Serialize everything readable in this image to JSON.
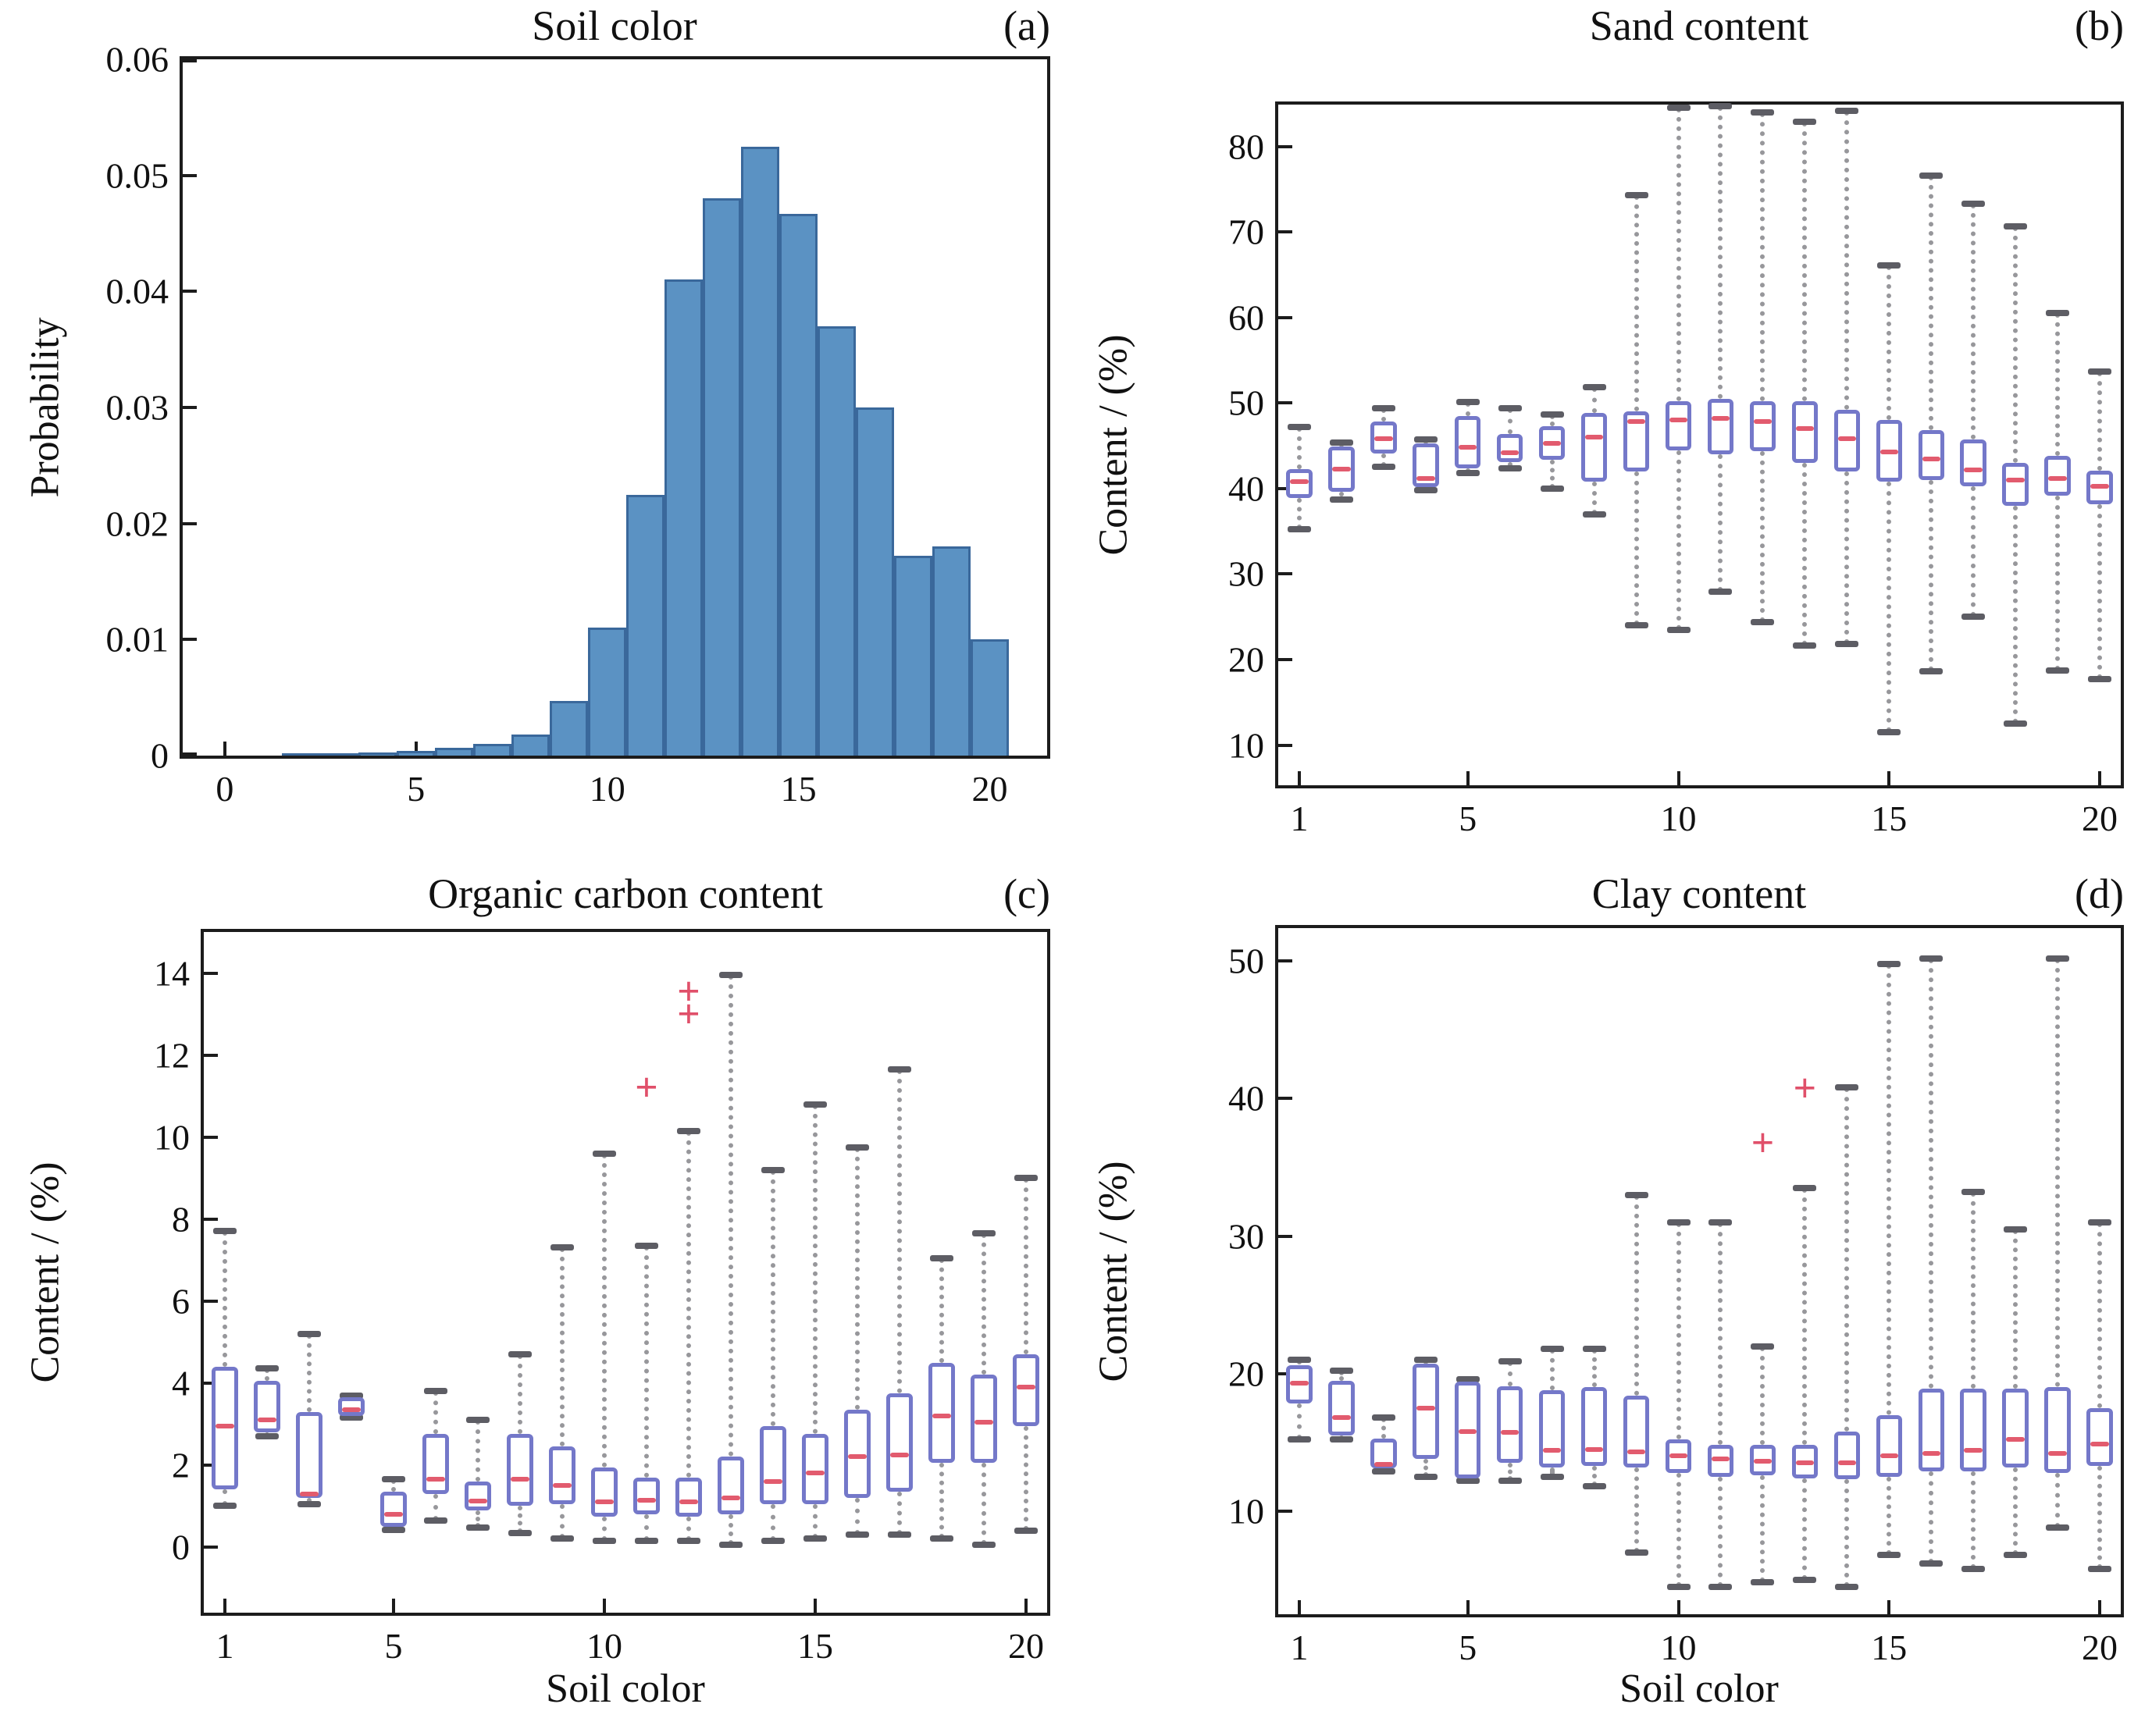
{
  "colors": {
    "hist_fill": "#5b92c3",
    "hist_edge": "#3a689b",
    "box_edge": "#7478c9",
    "median": "#e25b6e",
    "whisker": "#97979b",
    "cap": "#5d5d64",
    "outlier": "#e0506a",
    "axis": "#1c1c1c",
    "text": "#111111"
  },
  "box_values_order": "lo, q1, median, q3, hi",
  "chart_data": [
    {
      "id": "a",
      "type": "bar",
      "subtype": "histogram",
      "title": "Soil color",
      "tag": "(a)",
      "ylabel": "Probability",
      "xlabel": "",
      "xlim": [
        -1.1,
        21.5
      ],
      "ylim": [
        0,
        0.06
      ],
      "xticks": [
        0,
        5,
        10,
        15,
        20
      ],
      "yticks": [
        0,
        0.01,
        0.02,
        0.03,
        0.04,
        0.05,
        0.06
      ],
      "ytick_labels": [
        "0",
        "0.01",
        "0.02",
        "0.03",
        "0.04",
        "0.05",
        "0.06"
      ],
      "bin_start": 1.5,
      "bin_width": 1.0,
      "values": [
        0.0002,
        0.0002,
        0.0003,
        0.0004,
        0.0007,
        0.001,
        0.0018,
        0.0047,
        0.011,
        0.0225,
        0.041,
        0.048,
        0.0525,
        0.0467,
        0.037,
        0.03,
        0.0172,
        0.018,
        0.01
      ]
    },
    {
      "id": "b",
      "type": "box",
      "title": "Sand content",
      "tag": "(b)",
      "ylabel": "Content / (%)",
      "xlabel": "",
      "categories": [
        1,
        2,
        3,
        4,
        5,
        6,
        7,
        8,
        9,
        10,
        11,
        12,
        13,
        14,
        15,
        16,
        17,
        18,
        19,
        20
      ],
      "xticks": [
        1,
        5,
        10,
        15,
        20
      ],
      "yticks": [
        10,
        20,
        30,
        40,
        50,
        60,
        70,
        80
      ],
      "ylim": [
        5.3,
        84.9
      ],
      "boxes": [
        {
          "w": [
            35.2,
            38.9,
            40.8,
            42.3,
            47.2
          ],
          "out": []
        },
        {
          "w": [
            38.7,
            39.6,
            42.3,
            44.9,
            45.4
          ],
          "out": []
        },
        {
          "w": [
            42.5,
            44.1,
            45.8,
            47.8,
            49.4
          ],
          "out": []
        },
        {
          "w": [
            39.8,
            40.2,
            41.2,
            45.3,
            45.7
          ],
          "out": []
        },
        {
          "w": [
            41.8,
            42.4,
            44.8,
            48.5,
            50.1
          ],
          "out": []
        },
        {
          "w": [
            42.4,
            43.1,
            44.2,
            46.4,
            49.4
          ],
          "out": []
        },
        {
          "w": [
            40.0,
            43.4,
            45.3,
            47.3,
            48.7
          ],
          "out": []
        },
        {
          "w": [
            37.0,
            40.8,
            46.0,
            48.8,
            51.9
          ],
          "out": []
        },
        {
          "w": [
            24.0,
            42.0,
            47.8,
            49.0,
            74.3
          ],
          "out": []
        },
        {
          "w": [
            23.5,
            44.5,
            48.0,
            50.2,
            84.5
          ],
          "out": []
        },
        {
          "w": [
            27.9,
            44.0,
            48.2,
            50.5,
            84.7
          ],
          "out": []
        },
        {
          "w": [
            24.4,
            44.4,
            47.8,
            50.2,
            84.0
          ],
          "out": []
        },
        {
          "w": [
            21.6,
            43.0,
            47.0,
            50.2,
            82.9
          ],
          "out": []
        },
        {
          "w": [
            21.8,
            42.0,
            45.8,
            49.2,
            84.2
          ],
          "out": []
        },
        {
          "w": [
            11.5,
            40.8,
            44.3,
            48.0,
            66.1
          ],
          "out": []
        },
        {
          "w": [
            18.6,
            41.0,
            43.5,
            46.8,
            76.6
          ],
          "out": []
        },
        {
          "w": [
            25.0,
            40.3,
            42.2,
            45.7,
            73.3
          ],
          "out": []
        },
        {
          "w": [
            12.5,
            38.0,
            41.0,
            43.0,
            70.7
          ],
          "out": []
        },
        {
          "w": [
            18.7,
            39.2,
            41.2,
            43.8,
            60.5
          ],
          "out": []
        },
        {
          "w": [
            17.7,
            38.2,
            40.3,
            42.1,
            53.7
          ],
          "out": []
        }
      ]
    },
    {
      "id": "c",
      "type": "box",
      "title": "Organic carbon content",
      "tag": "(c)",
      "ylabel": "Content / (%)",
      "xlabel": "Soil color",
      "categories": [
        1,
        2,
        3,
        4,
        5,
        6,
        7,
        8,
        9,
        10,
        11,
        12,
        13,
        14,
        15,
        16,
        17,
        18,
        19,
        20
      ],
      "xticks": [
        1,
        5,
        10,
        15,
        20
      ],
      "yticks": [
        0,
        2,
        4,
        6,
        8,
        10,
        12,
        14
      ],
      "ylim": [
        -1.6,
        15.0
      ],
      "boxes": [
        {
          "w": [
            1.0,
            1.4,
            2.95,
            4.4,
            7.7
          ],
          "out": []
        },
        {
          "w": [
            2.7,
            2.8,
            3.1,
            4.05,
            4.35
          ],
          "out": []
        },
        {
          "w": [
            1.05,
            1.2,
            1.3,
            3.3,
            5.2
          ],
          "out": []
        },
        {
          "w": [
            3.15,
            3.2,
            3.35,
            3.65,
            3.7
          ],
          "out": []
        },
        {
          "w": [
            0.42,
            0.5,
            0.8,
            1.35,
            1.65
          ],
          "out": []
        },
        {
          "w": [
            0.65,
            1.3,
            1.65,
            2.75,
            3.8
          ],
          "out": []
        },
        {
          "w": [
            0.48,
            0.9,
            1.12,
            1.6,
            3.1
          ],
          "out": []
        },
        {
          "w": [
            0.35,
            1.0,
            1.65,
            2.75,
            4.7
          ],
          "out": []
        },
        {
          "w": [
            0.2,
            1.05,
            1.5,
            2.45,
            7.3
          ],
          "out": []
        },
        {
          "w": [
            0.15,
            0.75,
            1.1,
            1.95,
            9.6
          ],
          "out": []
        },
        {
          "w": [
            0.15,
            0.8,
            1.15,
            1.7,
            7.35
          ],
          "out": [
            11.15
          ]
        },
        {
          "w": [
            0.15,
            0.75,
            1.1,
            1.7,
            10.15
          ],
          "out": [
            12.95,
            13.5
          ]
        },
        {
          "w": [
            0.05,
            0.8,
            1.2,
            2.2,
            13.95
          ],
          "out": []
        },
        {
          "w": [
            0.15,
            1.05,
            1.6,
            2.95,
            9.2
          ],
          "out": []
        },
        {
          "w": [
            0.2,
            1.05,
            1.8,
            2.75,
            10.8
          ],
          "out": []
        },
        {
          "w": [
            0.3,
            1.2,
            2.2,
            3.35,
            9.75
          ],
          "out": []
        },
        {
          "w": [
            0.3,
            1.35,
            2.25,
            3.75,
            11.65
          ],
          "out": []
        },
        {
          "w": [
            0.2,
            2.05,
            3.2,
            4.5,
            7.05
          ],
          "out": []
        },
        {
          "w": [
            0.05,
            2.05,
            3.05,
            4.2,
            7.65
          ],
          "out": []
        },
        {
          "w": [
            0.4,
            2.95,
            3.9,
            4.7,
            9.0
          ],
          "out": []
        }
      ]
    },
    {
      "id": "d",
      "type": "box",
      "title": "Clay content",
      "tag": "(d)",
      "ylabel": "Content / (%)",
      "xlabel": "Soil color",
      "categories": [
        1,
        2,
        3,
        4,
        5,
        6,
        7,
        8,
        9,
        10,
        11,
        12,
        13,
        14,
        15,
        16,
        17,
        18,
        19,
        20
      ],
      "xticks": [
        1,
        5,
        10,
        15,
        20
      ],
      "yticks": [
        10,
        20,
        30,
        40,
        50
      ],
      "ylim": [
        2.5,
        52.4
      ],
      "boxes": [
        {
          "w": [
            15.2,
            17.8,
            19.3,
            20.6,
            21.0
          ],
          "out": []
        },
        {
          "w": [
            15.2,
            15.5,
            16.8,
            19.5,
            20.2
          ],
          "out": []
        },
        {
          "w": [
            12.9,
            13.1,
            13.4,
            15.3,
            16.8
          ],
          "out": []
        },
        {
          "w": [
            12.5,
            13.8,
            17.5,
            20.7,
            21.0
          ],
          "out": []
        },
        {
          "w": [
            12.2,
            12.4,
            15.8,
            19.4,
            19.6
          ],
          "out": []
        },
        {
          "w": [
            12.2,
            13.5,
            15.7,
            19.1,
            20.9
          ],
          "out": []
        },
        {
          "w": [
            12.5,
            13.2,
            14.4,
            18.8,
            21.8
          ],
          "out": []
        },
        {
          "w": [
            11.8,
            13.3,
            14.5,
            19.0,
            21.8
          ],
          "out": []
        },
        {
          "w": [
            7.0,
            13.2,
            14.3,
            18.4,
            33.0
          ],
          "out": []
        },
        {
          "w": [
            4.5,
            12.8,
            14.0,
            15.2,
            31.0
          ],
          "out": []
        },
        {
          "w": [
            4.5,
            12.5,
            13.8,
            14.8,
            31.0
          ],
          "out": []
        },
        {
          "w": [
            4.8,
            12.6,
            13.6,
            14.8,
            22.0
          ],
          "out": [
            36.6
          ]
        },
        {
          "w": [
            5.0,
            12.4,
            13.5,
            14.8,
            33.5
          ],
          "out": [
            40.6
          ]
        },
        {
          "w": [
            4.5,
            12.3,
            13.5,
            15.8,
            40.8
          ],
          "out": []
        },
        {
          "w": [
            6.8,
            12.5,
            14.0,
            17.0,
            49.8
          ],
          "out": []
        },
        {
          "w": [
            6.2,
            12.9,
            14.2,
            18.9,
            50.2
          ],
          "out": []
        },
        {
          "w": [
            5.8,
            12.9,
            14.4,
            18.9,
            33.2
          ],
          "out": []
        },
        {
          "w": [
            6.8,
            13.2,
            15.2,
            18.9,
            30.5
          ],
          "out": []
        },
        {
          "w": [
            8.8,
            12.8,
            14.2,
            19.0,
            50.2
          ],
          "out": []
        },
        {
          "w": [
            5.8,
            13.3,
            14.9,
            17.5,
            31.0
          ],
          "out": []
        }
      ]
    }
  ]
}
